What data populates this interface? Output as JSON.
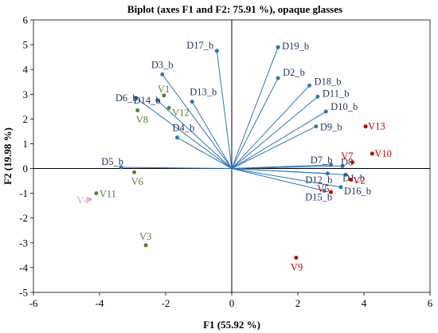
{
  "chart_data": {
    "type": "scatter",
    "title": "Biplot (axes F1 and F2: 75.91 %), opaque glasses",
    "xlabel": "F1 (55.92 %)",
    "ylabel": "F2 (19.98 %)",
    "xlim": [
      -6,
      6
    ],
    "ylim": [
      -5,
      6
    ],
    "xticks": [
      -6,
      -4,
      -2,
      0,
      2,
      4,
      6
    ],
    "yticks": [
      -5,
      -4,
      -3,
      -2,
      -1,
      0,
      1,
      2,
      3,
      4,
      5,
      6
    ],
    "grid": false,
    "vectors": {
      "color": "#2e75b6",
      "points": [
        {
          "label": "D17_b",
          "x": -0.45,
          "y": 4.75
        },
        {
          "label": "D19_b",
          "x": 1.4,
          "y": 4.9
        },
        {
          "label": "D3_b",
          "x": -2.1,
          "y": 3.8
        },
        {
          "label": "D2_b",
          "x": 1.4,
          "y": 3.65
        },
        {
          "label": "D18_b",
          "x": 2.35,
          "y": 3.35
        },
        {
          "label": "D13_b",
          "x": -1.2,
          "y": 2.7
        },
        {
          "label": "D11_b",
          "x": 2.6,
          "y": 2.9
        },
        {
          "label": "D6_b",
          "x": -2.9,
          "y": 2.85
        },
        {
          "label": "D14_b",
          "x": -2.25,
          "y": 2.75
        },
        {
          "label": "D10_b",
          "x": 2.85,
          "y": 2.3
        },
        {
          "label": "D9_b",
          "x": 2.55,
          "y": 1.7
        },
        {
          "label": "D4_b",
          "x": -1.65,
          "y": 1.25
        },
        {
          "label": "D5_b",
          "x": -3.35,
          "y": 0.05
        },
        {
          "label": "D7_b",
          "x": 3.0,
          "y": 0.15
        },
        {
          "label": "D8",
          "x": 3.35,
          "y": 0.1
        },
        {
          "label": "D12_b",
          "x": 2.9,
          "y": -0.2
        },
        {
          "label": "D1_b",
          "x": 3.45,
          "y": -0.25
        },
        {
          "label": "D16_b",
          "x": 3.3,
          "y": -0.75
        },
        {
          "label": "D15_b",
          "x": 2.8,
          "y": -0.9
        }
      ]
    },
    "observations": [
      {
        "label": "V1",
        "x": -2.05,
        "y": 2.95,
        "color": "#548235"
      },
      {
        "label": "V12",
        "x": -1.9,
        "y": 2.45,
        "color": "#548235"
      },
      {
        "label": "V8",
        "x": -2.85,
        "y": 2.35,
        "color": "#548235"
      },
      {
        "label": "V6",
        "x": -2.95,
        "y": -0.15,
        "color": "#548235"
      },
      {
        "label": "V11",
        "x": -4.1,
        "y": -1.0,
        "color": "#548235"
      },
      {
        "label": "V3",
        "x": -2.6,
        "y": -3.1,
        "color": "#548235"
      },
      {
        "label": "V4",
        "x": -4.3,
        "y": -1.25,
        "color": "#e8a0d0"
      },
      {
        "label": "V13",
        "x": 4.05,
        "y": 1.7,
        "color": "#c00000"
      },
      {
        "label": "V10",
        "x": 4.25,
        "y": 0.6,
        "color": "#c00000"
      },
      {
        "label": "V7",
        "x": 3.65,
        "y": 0.25,
        "color": "#c00000"
      },
      {
        "label": "V2",
        "x": 3.6,
        "y": -0.45,
        "color": "#c00000"
      },
      {
        "label": "V5",
        "x": 3.0,
        "y": -0.95,
        "color": "#c00000"
      },
      {
        "label": "V9",
        "x": 1.95,
        "y": -3.6,
        "color": "#c00000"
      }
    ]
  }
}
